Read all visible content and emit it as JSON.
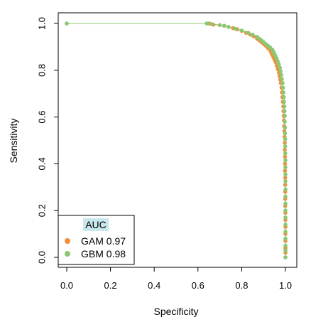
{
  "chart_data": {
    "type": "line",
    "title": "",
    "xlabel": "Specificity",
    "ylabel": "Sensitivity",
    "xlim": [
      0.0,
      1.0
    ],
    "ylim": [
      0.0,
      1.0
    ],
    "x_ticks": [
      "0.0",
      "0.2",
      "0.4",
      "0.6",
      "0.8",
      "1.0"
    ],
    "y_ticks": [
      "0.0",
      "0.2",
      "0.4",
      "0.6",
      "0.8",
      "1.0"
    ],
    "grid": false,
    "legend": {
      "title": "AUC",
      "title_highlight": "#c9e8ec",
      "placement": "bottom-left",
      "entries": [
        {
          "label": "GAM 0.97",
          "color": "#f28e3c"
        },
        {
          "label": "GBM 0.98",
          "color": "#8bc873"
        }
      ]
    },
    "series": [
      {
        "name": "GAM",
        "auc": 0.97,
        "color": "#f28e3c",
        "points": [
          [
            0.0,
            1.0
          ],
          [
            0.65,
            1.0
          ],
          [
            0.67,
            0.995
          ],
          [
            0.72,
            0.99
          ],
          [
            0.74,
            0.985
          ],
          [
            0.76,
            0.98
          ],
          [
            0.78,
            0.975
          ],
          [
            0.8,
            0.968
          ],
          [
            0.82,
            0.96
          ],
          [
            0.84,
            0.952
          ],
          [
            0.855,
            0.945
          ],
          [
            0.87,
            0.935
          ],
          [
            0.88,
            0.928
          ],
          [
            0.89,
            0.92
          ],
          [
            0.9,
            0.912
          ],
          [
            0.91,
            0.905
          ],
          [
            0.92,
            0.895
          ],
          [
            0.93,
            0.885
          ],
          [
            0.935,
            0.875
          ],
          [
            0.94,
            0.865
          ],
          [
            0.945,
            0.855
          ],
          [
            0.95,
            0.845
          ],
          [
            0.955,
            0.835
          ],
          [
            0.96,
            0.82
          ],
          [
            0.965,
            0.805
          ],
          [
            0.97,
            0.79
          ],
          [
            0.973,
            0.775
          ],
          [
            0.976,
            0.76
          ],
          [
            0.979,
            0.745
          ],
          [
            0.982,
            0.725
          ],
          [
            0.984,
            0.705
          ],
          [
            0.986,
            0.685
          ],
          [
            0.988,
            0.665
          ],
          [
            0.99,
            0.645
          ],
          [
            0.991,
            0.625
          ],
          [
            0.992,
            0.605
          ],
          [
            0.993,
            0.585
          ],
          [
            0.994,
            0.56
          ],
          [
            0.995,
            0.54
          ],
          [
            0.996,
            0.515
          ],
          [
            0.997,
            0.49
          ],
          [
            0.997,
            0.46
          ],
          [
            0.998,
            0.43
          ],
          [
            0.998,
            0.4
          ],
          [
            0.998,
            0.37
          ],
          [
            0.999,
            0.34
          ],
          [
            0.999,
            0.31
          ],
          [
            0.999,
            0.28
          ],
          [
            0.999,
            0.25
          ],
          [
            0.999,
            0.22
          ],
          [
            1.0,
            0.19
          ],
          [
            1.0,
            0.16
          ],
          [
            1.0,
            0.13
          ],
          [
            1.0,
            0.1
          ],
          [
            1.0,
            0.07
          ],
          [
            1.0,
            0.04
          ],
          [
            1.0,
            0.02
          ],
          [
            1.0,
            0.0
          ]
        ]
      },
      {
        "name": "GBM",
        "auc": 0.98,
        "color": "#8bc873",
        "points": [
          [
            0.0,
            1.0
          ],
          [
            0.64,
            1.0
          ],
          [
            0.66,
            0.998
          ],
          [
            0.7,
            0.993
          ],
          [
            0.72,
            0.99
          ],
          [
            0.74,
            0.985
          ],
          [
            0.77,
            0.978
          ],
          [
            0.8,
            0.97
          ],
          [
            0.83,
            0.96
          ],
          [
            0.85,
            0.952
          ],
          [
            0.87,
            0.943
          ],
          [
            0.88,
            0.935
          ],
          [
            0.89,
            0.928
          ],
          [
            0.9,
            0.92
          ],
          [
            0.91,
            0.912
          ],
          [
            0.92,
            0.905
          ],
          [
            0.93,
            0.897
          ],
          [
            0.94,
            0.888
          ],
          [
            0.945,
            0.879
          ],
          [
            0.95,
            0.87
          ],
          [
            0.955,
            0.86
          ],
          [
            0.96,
            0.85
          ],
          [
            0.965,
            0.838
          ],
          [
            0.97,
            0.825
          ],
          [
            0.975,
            0.81
          ],
          [
            0.978,
            0.795
          ],
          [
            0.981,
            0.78
          ],
          [
            0.984,
            0.762
          ],
          [
            0.987,
            0.745
          ],
          [
            0.989,
            0.725
          ],
          [
            0.991,
            0.705
          ],
          [
            0.993,
            0.685
          ],
          [
            0.994,
            0.665
          ],
          [
            0.995,
            0.645
          ],
          [
            0.996,
            0.625
          ],
          [
            0.997,
            0.605
          ],
          [
            0.997,
            0.58
          ],
          [
            0.998,
            0.555
          ],
          [
            0.998,
            0.53
          ],
          [
            0.999,
            0.505
          ],
          [
            0.999,
            0.475
          ],
          [
            0.999,
            0.445
          ],
          [
            1.0,
            0.415
          ],
          [
            1.0,
            0.385
          ],
          [
            1.0,
            0.355
          ],
          [
            1.0,
            0.325
          ],
          [
            1.0,
            0.29
          ],
          [
            1.0,
            0.26
          ],
          [
            1.0,
            0.23
          ],
          [
            1.0,
            0.2
          ],
          [
            1.0,
            0.17
          ],
          [
            1.0,
            0.14
          ],
          [
            1.0,
            0.11
          ],
          [
            1.0,
            0.08
          ],
          [
            1.0,
            0.05
          ],
          [
            1.0,
            0.03
          ],
          [
            1.0,
            0.0
          ]
        ]
      }
    ]
  }
}
